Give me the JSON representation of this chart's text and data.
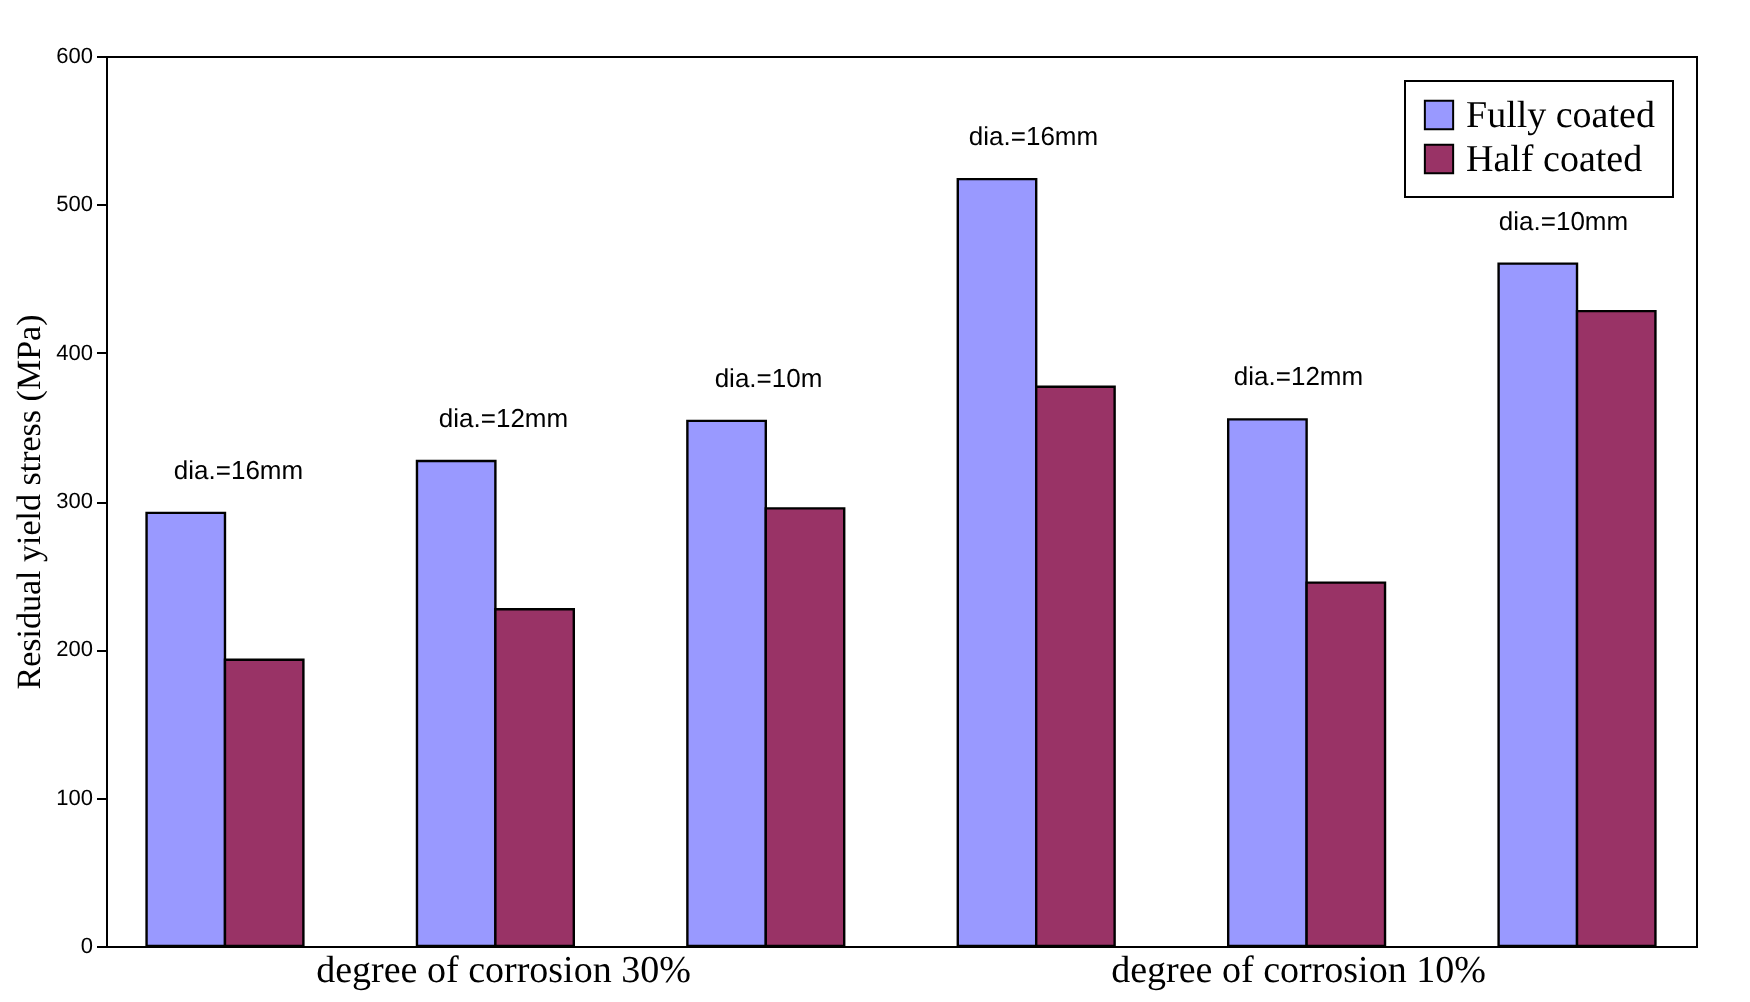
{
  "chart_data": {
    "type": "bar",
    "categories": [
      null,
      null,
      null,
      null,
      null,
      null
    ],
    "ylabel": "Residual yield stress (MPa)",
    "ylim": [
      0,
      600
    ],
    "yticks": [
      0,
      100,
      200,
      300,
      400,
      500,
      600
    ],
    "legend": "top right",
    "grid": false,
    "series": [
      {
        "name": "Fully coated",
        "color": "#9999ff",
        "values": [
          292,
          327,
          354,
          517,
          355,
          460
        ]
      },
      {
        "name": "Half coated",
        "color": "#993366",
        "values": [
          193,
          227,
          295,
          377,
          245,
          428
        ]
      }
    ],
    "annotations": [
      "dia.=16mm",
      "dia.=12mm",
      "dia.=10m",
      "dia.=16mm",
      "dia.=12mm",
      "dia.=10mm",
      "degree of corrosion 30%",
      "degree of corrosion 10%"
    ]
  }
}
